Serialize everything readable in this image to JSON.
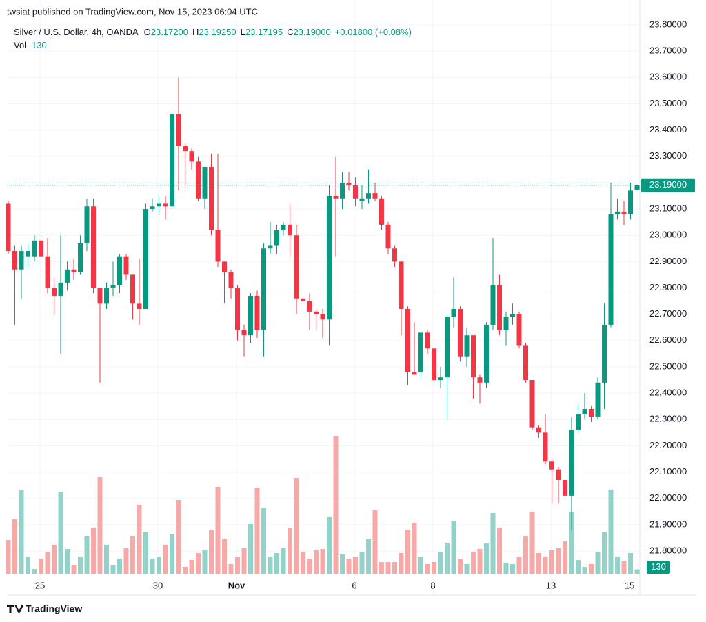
{
  "chart_data": {
    "type": "candlestick",
    "published": "twsiat published on TradingView.com, Nov 15, 2023 06:04 UTC",
    "symbol": "Silver / U.S. Dollar, 4h, OANDA",
    "legend": [
      {
        "key": "O",
        "text": "23.17200"
      },
      {
        "key": "H",
        "text": "23.19250"
      },
      {
        "key": "L",
        "text": "23.17195"
      },
      {
        "key": "C",
        "text": "23.19000"
      }
    ],
    "change": "+0.01800 (+0.08%)",
    "volume_label": "Vol",
    "brand": "TradingView",
    "up_color": "#089981",
    "down_color": "#f23645",
    "volume_up_color": "#92d2c8",
    "volume_down_color": "#f7a9a7",
    "ylim": [
      21.8,
      23.8
    ],
    "yticks": [
      {
        "value": 21.8,
        "label": "21.80000"
      },
      {
        "value": 21.9,
        "label": "21.90000"
      },
      {
        "value": 22.0,
        "label": "22.00000"
      },
      {
        "value": 22.1,
        "label": "22.10000"
      },
      {
        "value": 22.2,
        "label": "22.20000"
      },
      {
        "value": 22.3,
        "label": "22.30000"
      },
      {
        "value": 22.4,
        "label": "22.40000"
      },
      {
        "value": 22.5,
        "label": "22.50000"
      },
      {
        "value": 22.6,
        "label": "22.60000"
      },
      {
        "value": 22.7,
        "label": "22.70000"
      },
      {
        "value": 22.8,
        "label": "22.80000"
      },
      {
        "value": 22.9,
        "label": "22.90000"
      },
      {
        "value": 23.0,
        "label": "23.00000"
      },
      {
        "value": 23.1,
        "label": "23.10000"
      },
      {
        "value": 23.2,
        "label": "23.20000"
      },
      {
        "value": 23.3,
        "label": "23.30000"
      },
      {
        "value": 23.4,
        "label": "23.40000"
      },
      {
        "value": 23.5,
        "label": "23.50000"
      },
      {
        "value": 23.6,
        "label": "23.60000"
      },
      {
        "value": 23.7,
        "label": "23.70000"
      },
      {
        "value": 23.8,
        "label": "23.80000"
      }
    ],
    "xticks": [
      {
        "value": 5,
        "label": "25"
      },
      {
        "value": 23,
        "label": "30"
      },
      {
        "value": 35,
        "label": "Nov"
      },
      {
        "value": 53,
        "label": "6"
      },
      {
        "value": 65,
        "label": "8"
      },
      {
        "value": 83,
        "label": "13"
      },
      {
        "value": 95,
        "label": "15"
      }
    ],
    "last_price": {
      "value": 23.19,
      "label": "23.19000"
    },
    "candles": [
      [
        23.12,
        23.13,
        22.93,
        22.94
      ],
      [
        22.94,
        22.96,
        22.66,
        22.87
      ],
      [
        22.87,
        22.96,
        22.76,
        22.94
      ],
      [
        22.92,
        22.97,
        22.88,
        22.94
      ],
      [
        22.92,
        23.0,
        22.9,
        22.98
      ],
      [
        22.98,
        23.0,
        22.86,
        22.92
      ],
      [
        22.92,
        22.99,
        22.78,
        22.8
      ],
      [
        22.8,
        22.84,
        22.7,
        22.77
      ],
      [
        22.77,
        23.0,
        22.55,
        22.82
      ],
      [
        22.82,
        22.9,
        22.79,
        22.87
      ],
      [
        22.87,
        22.91,
        22.83,
        22.86
      ],
      [
        22.86,
        23.0,
        22.85,
        22.97
      ],
      [
        22.97,
        23.14,
        22.94,
        23.11
      ],
      [
        23.11,
        23.14,
        22.78,
        22.8
      ],
      [
        22.8,
        22.8,
        22.44,
        22.74
      ],
      [
        22.74,
        22.82,
        22.72,
        22.8
      ],
      [
        22.8,
        22.9,
        22.77,
        22.81
      ],
      [
        22.81,
        22.93,
        22.78,
        22.92
      ],
      [
        22.92,
        22.93,
        22.83,
        22.85
      ],
      [
        22.85,
        22.85,
        22.68,
        22.74
      ],
      [
        22.74,
        22.91,
        22.66,
        22.72
      ],
      [
        22.72,
        23.12,
        22.72,
        23.1
      ],
      [
        23.1,
        23.14,
        23.09,
        23.11
      ],
      [
        23.11,
        23.15,
        23.08,
        23.12
      ],
      [
        23.12,
        23.15,
        23.06,
        23.11
      ],
      [
        23.11,
        23.48,
        23.1,
        23.46
      ],
      [
        23.46,
        23.6,
        23.17,
        23.34
      ],
      [
        23.34,
        23.35,
        23.18,
        23.32
      ],
      [
        23.32,
        23.33,
        23.25,
        23.28
      ],
      [
        23.28,
        23.3,
        23.13,
        23.14
      ],
      [
        23.14,
        23.26,
        23.1,
        23.26
      ],
      [
        23.26,
        23.31,
        23.0,
        23.02
      ],
      [
        23.02,
        23.31,
        22.88,
        22.9
      ],
      [
        22.9,
        22.9,
        22.74,
        22.86
      ],
      [
        22.86,
        22.87,
        22.76,
        22.8
      ],
      [
        22.8,
        22.81,
        22.6,
        22.64
      ],
      [
        22.64,
        22.66,
        22.54,
        22.62
      ],
      [
        22.62,
        22.78,
        22.59,
        22.77
      ],
      [
        22.77,
        22.79,
        22.61,
        22.64
      ],
      [
        22.64,
        22.97,
        22.54,
        22.95
      ],
      [
        22.95,
        23.05,
        22.93,
        22.96
      ],
      [
        22.96,
        23.04,
        22.93,
        23.02
      ],
      [
        23.02,
        23.05,
        23.0,
        23.04
      ],
      [
        23.04,
        23.12,
        22.92,
        23.0
      ],
      [
        23.0,
        23.04,
        22.7,
        22.76
      ],
      [
        22.76,
        22.8,
        22.71,
        22.75
      ],
      [
        22.75,
        22.78,
        22.64,
        22.71
      ],
      [
        22.71,
        22.72,
        22.64,
        22.7
      ],
      [
        22.7,
        22.72,
        22.61,
        22.68
      ],
      [
        22.68,
        23.19,
        22.58,
        23.15
      ],
      [
        23.15,
        23.3,
        22.92,
        23.14
      ],
      [
        23.14,
        23.24,
        23.1,
        23.2
      ],
      [
        23.2,
        23.24,
        23.17,
        23.19
      ],
      [
        23.19,
        23.22,
        23.11,
        23.14
      ],
      [
        23.13,
        23.19,
        23.1,
        23.14
      ],
      [
        23.14,
        23.25,
        23.12,
        23.16
      ],
      [
        23.16,
        23.2,
        23.13,
        23.14
      ],
      [
        23.14,
        23.15,
        23.02,
        23.04
      ],
      [
        23.04,
        23.05,
        22.93,
        22.95
      ],
      [
        22.95,
        22.96,
        22.88,
        22.9
      ],
      [
        22.9,
        22.9,
        22.62,
        22.72
      ],
      [
        22.72,
        22.73,
        22.43,
        22.48
      ],
      [
        22.48,
        22.67,
        22.47,
        22.47
      ],
      [
        22.48,
        22.64,
        22.46,
        22.63
      ],
      [
        22.63,
        22.64,
        22.55,
        22.57
      ],
      [
        22.57,
        22.61,
        22.44,
        22.45
      ],
      [
        22.45,
        22.5,
        22.42,
        22.46
      ],
      [
        22.46,
        22.7,
        22.3,
        22.69
      ],
      [
        22.69,
        22.84,
        22.65,
        22.72
      ],
      [
        22.72,
        22.73,
        22.52,
        22.54
      ],
      [
        22.54,
        22.65,
        22.5,
        22.62
      ],
      [
        22.62,
        22.62,
        22.38,
        22.46
      ],
      [
        22.46,
        22.47,
        22.36,
        22.44
      ],
      [
        22.44,
        22.67,
        22.42,
        22.66
      ],
      [
        22.66,
        22.99,
        22.64,
        22.81
      ],
      [
        22.81,
        22.85,
        22.62,
        22.64
      ],
      [
        22.64,
        22.71,
        22.58,
        22.69
      ],
      [
        22.69,
        22.74,
        22.66,
        22.7
      ],
      [
        22.7,
        22.71,
        22.57,
        22.58
      ],
      [
        22.58,
        22.59,
        22.44,
        22.45
      ],
      [
        22.45,
        22.45,
        22.26,
        22.27
      ],
      [
        22.27,
        22.28,
        22.23,
        22.25
      ],
      [
        22.25,
        22.32,
        22.13,
        22.14
      ],
      [
        22.14,
        22.15,
        21.98,
        22.11
      ],
      [
        22.11,
        22.12,
        21.98,
        22.07
      ],
      [
        22.07,
        22.1,
        21.99,
        22.01
      ],
      [
        22.01,
        22.31,
        21.88,
        22.26
      ],
      [
        22.26,
        22.36,
        22.25,
        22.32
      ],
      [
        22.32,
        22.4,
        22.3,
        22.34
      ],
      [
        22.34,
        22.35,
        22.29,
        22.31
      ],
      [
        22.31,
        22.46,
        22.3,
        22.44
      ],
      [
        22.44,
        22.74,
        22.34,
        22.66
      ],
      [
        22.66,
        23.2,
        22.65,
        23.08
      ],
      [
        23.08,
        23.14,
        23.06,
        23.09
      ],
      [
        23.09,
        23.13,
        23.04,
        23.08
      ],
      [
        23.08,
        23.2,
        23.06,
        23.17
      ],
      [
        23.172,
        23.1925,
        23.17195,
        23.19
      ]
    ],
    "volume": [
      980,
      1580,
      2420,
      480,
      140,
      440,
      640,
      840,
      2380,
      720,
      240,
      480,
      1080,
      1340,
      2800,
      840,
      240,
      440,
      740,
      1080,
      2000,
      1200,
      440,
      480,
      840,
      1140,
      2140,
      200,
      400,
      600,
      680,
      1280,
      2520,
      1000,
      280,
      480,
      740,
      1440,
      2500,
      1920,
      480,
      600,
      740,
      1340,
      2780,
      640,
      440,
      680,
      720,
      1640,
      4000,
      560,
      440,
      480,
      640,
      1000,
      1840,
      340,
      340,
      340,
      600,
      1280,
      1480,
      480,
      280,
      340,
      640,
      900,
      1540,
      440,
      280,
      640,
      720,
      880,
      1760,
      1320,
      320,
      280,
      480,
      1080,
      1800,
      600,
      480,
      680,
      740,
      940,
      1800,
      400,
      200,
      280,
      640,
      1200,
      2440,
      480,
      360,
      600,
      130
    ]
  }
}
